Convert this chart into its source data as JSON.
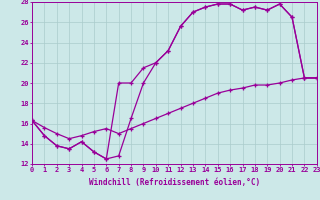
{
  "background_color": "#cce8e8",
  "grid_color": "#aacccc",
  "line_color": "#990099",
  "xlim": [
    0,
    23
  ],
  "ylim": [
    12,
    28
  ],
  "ytick_vals": [
    12,
    14,
    16,
    18,
    20,
    22,
    24,
    26,
    28
  ],
  "xtick_vals": [
    0,
    1,
    2,
    3,
    4,
    5,
    6,
    7,
    8,
    9,
    10,
    11,
    12,
    13,
    14,
    15,
    16,
    17,
    18,
    19,
    20,
    21,
    22,
    23
  ],
  "xlabel": "Windchill (Refroidissement éolien,°C)",
  "curve1_x": [
    0,
    1,
    2,
    3,
    4,
    5,
    6,
    7,
    8,
    9,
    10,
    11,
    12,
    13,
    14,
    15,
    16,
    17,
    18,
    19,
    20,
    21,
    22,
    23
  ],
  "curve1_y": [
    16.3,
    14.8,
    13.8,
    13.5,
    14.2,
    13.2,
    12.5,
    12.8,
    16.5,
    20.0,
    22.0,
    23.2,
    25.6,
    27.0,
    27.5,
    27.8,
    27.8,
    27.2,
    27.5,
    27.2,
    27.8,
    26.5,
    20.5,
    20.5
  ],
  "curve2_x": [
    0,
    1,
    2,
    3,
    4,
    5,
    6,
    7,
    8,
    9,
    10,
    11,
    12,
    13,
    14,
    15,
    16,
    17,
    18,
    19,
    20,
    21,
    22,
    23
  ],
  "curve2_y": [
    16.3,
    14.8,
    13.8,
    13.5,
    14.2,
    13.2,
    12.5,
    20.0,
    20.0,
    21.5,
    22.0,
    23.2,
    25.6,
    27.0,
    27.5,
    27.8,
    27.8,
    27.2,
    27.5,
    27.2,
    27.8,
    26.5,
    20.5,
    20.5
  ],
  "curve3_x": [
    0,
    1,
    2,
    3,
    4,
    5,
    6,
    7,
    8,
    9,
    10,
    11,
    12,
    13,
    14,
    15,
    16,
    17,
    18,
    19,
    20,
    21,
    22,
    23
  ],
  "curve3_y": [
    16.3,
    15.6,
    15.0,
    14.5,
    14.8,
    15.2,
    15.5,
    15.0,
    15.5,
    16.0,
    16.5,
    17.0,
    17.5,
    18.0,
    18.5,
    19.0,
    19.3,
    19.5,
    19.8,
    19.8,
    20.0,
    20.3,
    20.5,
    20.5
  ]
}
